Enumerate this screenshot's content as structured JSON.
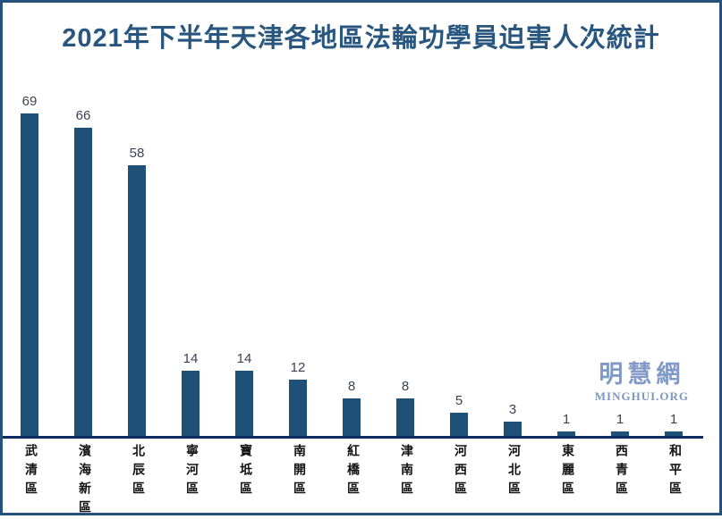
{
  "title": "2021年下半年天津各地區法輪功學員迫害人次統計",
  "watermark": {
    "cjk": "明慧網",
    "latin": "MINGHUI.ORG"
  },
  "chart_data": {
    "type": "bar",
    "title": "2021年下半年天津各地區法輪功學員迫害人次統計",
    "categories": [
      "武清區",
      "濱海新區",
      "北辰區",
      "寧河區",
      "寶坻區",
      "南開區",
      "紅橋區",
      "津南區",
      "河西區",
      "河北區",
      "東麗區",
      "西青區",
      "和平區"
    ],
    "values": [
      69,
      66,
      58,
      14,
      14,
      12,
      8,
      8,
      5,
      3,
      1,
      1,
      1
    ],
    "xlabel": "",
    "ylabel": "",
    "ylim": [
      0,
      74
    ],
    "grid": false,
    "legend": false,
    "data_labels": true,
    "category_label_orientation": "vertical",
    "colors": {
      "bar": "#1F5078",
      "axis_line": "#0D2B63",
      "value_label": "#3D4254",
      "category_label": "#111111",
      "title": "#28567F",
      "frame_border": "#24527C",
      "watermark": "#8099C5"
    }
  }
}
